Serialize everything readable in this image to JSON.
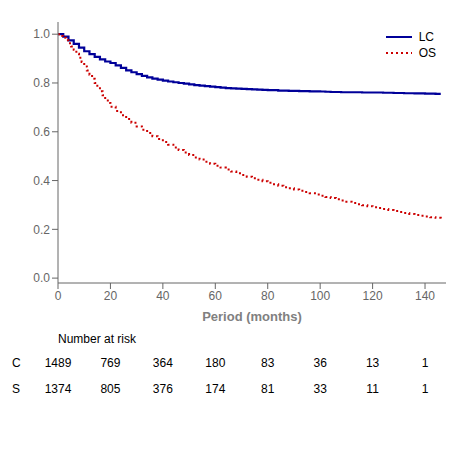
{
  "chart_data": {
    "type": "line",
    "title": "",
    "xlabel": "Period (months)",
    "xlim": [
      0,
      148
    ],
    "ylim": [
      -0.02,
      1.05
    ],
    "xticks": [
      0,
      20,
      40,
      60,
      80,
      100,
      120,
      140
    ],
    "yticks": [
      {
        "value": 0.0,
        "label": "0.0"
      },
      0.2,
      0.4,
      0.6,
      0.8,
      {
        "value": 1.0,
        "label": "1.0"
      }
    ],
    "grid": false,
    "legend": "upper right",
    "series": [
      {
        "name": "LC",
        "color": "#000099",
        "line_style": "solid",
        "x": [
          0,
          2,
          4,
          6,
          8,
          10,
          12,
          14,
          16,
          18,
          20,
          22,
          24,
          26,
          28,
          30,
          32,
          34,
          36,
          38,
          40,
          42,
          44,
          46,
          48,
          50,
          52,
          54,
          56,
          58,
          60,
          62,
          64,
          66,
          68,
          70,
          72,
          74,
          76,
          78,
          80,
          84,
          88,
          92,
          96,
          100,
          102,
          104,
          108,
          112,
          116,
          120,
          124,
          128,
          132,
          136,
          140,
          144,
          146
        ],
        "values": [
          1.0,
          0.99,
          0.975,
          0.96,
          0.945,
          0.93,
          0.918,
          0.907,
          0.897,
          0.888,
          0.882,
          0.872,
          0.862,
          0.852,
          0.844,
          0.836,
          0.829,
          0.823,
          0.818,
          0.814,
          0.81,
          0.806,
          0.803,
          0.8,
          0.797,
          0.794,
          0.791,
          0.789,
          0.787,
          0.785,
          0.783,
          0.781,
          0.779,
          0.778,
          0.777,
          0.776,
          0.775,
          0.774,
          0.773,
          0.772,
          0.771,
          0.769,
          0.768,
          0.767,
          0.766,
          0.765,
          0.764,
          0.763,
          0.762,
          0.762,
          0.761,
          0.761,
          0.76,
          0.759,
          0.758,
          0.757,
          0.756,
          0.755,
          0.755
        ]
      },
      {
        "name": "OS",
        "color": "#CC0000",
        "line_style": "dotted",
        "x": [
          0,
          1,
          2,
          3,
          4,
          5,
          6,
          7,
          8,
          9,
          10,
          11,
          12,
          13,
          14,
          15,
          16,
          17,
          18,
          19,
          20,
          22,
          24,
          26,
          28,
          30,
          32,
          34,
          36,
          38,
          40,
          42,
          44,
          46,
          48,
          50,
          52,
          54,
          56,
          58,
          60,
          62,
          64,
          66,
          68,
          70,
          72,
          74,
          76,
          78,
          80,
          82,
          84,
          86,
          88,
          90,
          92,
          94,
          96,
          98,
          100,
          102,
          104,
          106,
          108,
          110,
          112,
          114,
          116,
          118,
          120,
          122,
          124,
          126,
          128,
          130,
          132,
          134,
          136,
          138,
          140,
          142,
          144,
          146
        ],
        "values": [
          1.0,
          0.993,
          0.985,
          0.975,
          0.963,
          0.95,
          0.936,
          0.92,
          0.903,
          0.886,
          0.868,
          0.851,
          0.834,
          0.817,
          0.8,
          0.783,
          0.766,
          0.75,
          0.734,
          0.718,
          0.703,
          0.685,
          0.668,
          0.652,
          0.637,
          0.622,
          0.608,
          0.595,
          0.582,
          0.57,
          0.558,
          0.547,
          0.536,
          0.525,
          0.515,
          0.505,
          0.495,
          0.486,
          0.477,
          0.469,
          0.461,
          0.453,
          0.445,
          0.437,
          0.43,
          0.423,
          0.416,
          0.409,
          0.403,
          0.397,
          0.391,
          0.385,
          0.379,
          0.373,
          0.368,
          0.363,
          0.358,
          0.353,
          0.348,
          0.343,
          0.338,
          0.333,
          0.328,
          0.323,
          0.318,
          0.313,
          0.308,
          0.303,
          0.299,
          0.295,
          0.291,
          0.287,
          0.283,
          0.279,
          0.275,
          0.271,
          0.267,
          0.263,
          0.259,
          0.256,
          0.253,
          0.25,
          0.247,
          0.244
        ]
      }
    ],
    "risk_table": {
      "title": "Number at risk",
      "times": [
        0,
        20,
        40,
        60,
        80,
        100,
        120,
        140
      ],
      "rows": [
        {
          "label": "C",
          "values": [
            1489,
            769,
            364,
            180,
            83,
            36,
            13,
            1
          ]
        },
        {
          "label": "S",
          "values": [
            1374,
            805,
            376,
            174,
            81,
            33,
            11,
            1
          ]
        }
      ]
    }
  }
}
